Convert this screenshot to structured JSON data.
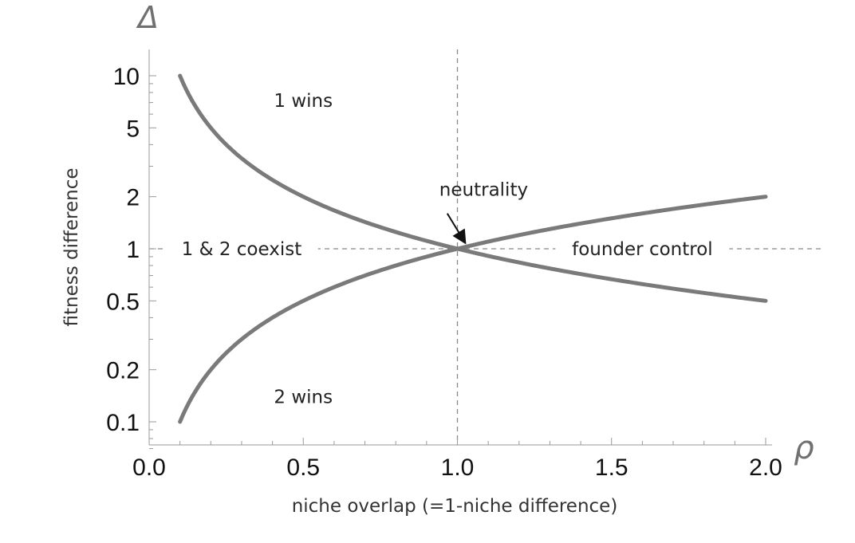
{
  "chart_data": {
    "type": "line",
    "xlabel": "niche overlap (=1-niche difference)",
    "ylabel": "fitness difference",
    "x_symbol": "ρ",
    "y_symbol": "Δ",
    "xlim": [
      0,
      2
    ],
    "ylim": [
      0.07,
      14
    ],
    "yscale": "log",
    "x_ticks": [
      0.0,
      0.5,
      1.0,
      1.5,
      2.0
    ],
    "x_tick_labels": [
      "0.0",
      "0.5",
      "1.0",
      "1.5",
      "2.0"
    ],
    "y_ticks": [
      0.1,
      0.2,
      0.5,
      1,
      2,
      5,
      10
    ],
    "y_tick_labels": [
      "0.1",
      "0.2",
      "0.5",
      "1",
      "2",
      "5",
      "10"
    ],
    "grid": false,
    "series": [
      {
        "formula": "1/rho",
        "x": [
          0.1,
          0.2,
          0.3,
          0.5,
          0.75,
          1.0,
          1.25,
          1.5,
          1.75,
          2.0
        ],
        "y": [
          10,
          5,
          3.33,
          2,
          1.33,
          1,
          0.8,
          0.667,
          0.571,
          0.5
        ],
        "color": "#7a7a7a"
      },
      {
        "formula": "rho",
        "x": [
          0.1,
          0.2,
          0.3,
          0.5,
          0.75,
          1.0,
          1.25,
          1.5,
          1.75,
          2.0
        ],
        "y": [
          0.1,
          0.2,
          0.3,
          0.5,
          0.75,
          1,
          1.25,
          1.5,
          1.75,
          2
        ],
        "color": "#7a7a7a"
      }
    ],
    "reference_lines": [
      {
        "orientation": "horizontal",
        "value": 1,
        "style": "dashed",
        "color": "#888888"
      },
      {
        "orientation": "vertical",
        "value": 1,
        "style": "dashed",
        "color": "#888888"
      }
    ],
    "annotations": [
      {
        "text": "1 wins",
        "x": 0.5,
        "y": 7.2
      },
      {
        "text": "2 wins",
        "x": 0.5,
        "y": 0.14
      },
      {
        "text": "1 & 2 coexist",
        "x": 0.3,
        "y": 1
      },
      {
        "text": "founder control",
        "x": 1.6,
        "y": 1
      },
      {
        "text": "neutrality",
        "x": 1.2,
        "y": 2.2,
        "arrow_to": [
          1.0,
          1.0
        ]
      }
    ]
  }
}
